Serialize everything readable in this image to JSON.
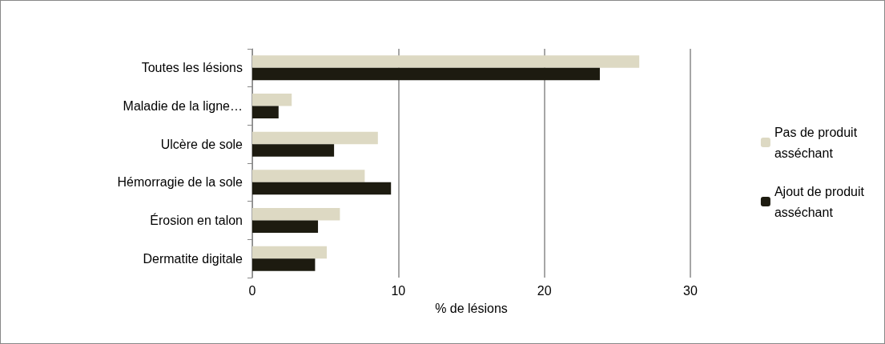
{
  "chart_data": {
    "type": "bar",
    "orientation": "horizontal",
    "xlabel": "% de lésions",
    "categories": [
      "Toutes les lésions",
      "Maladie de la ligne…",
      "Ulcère de sole",
      "Hémorragie de la sole",
      "Érosion en talon",
      "Dermatite digitale"
    ],
    "series": [
      {
        "name": "Pas de produit asséchant",
        "color": "#ddd9c3",
        "values": [
          26.5,
          2.7,
          8.6,
          7.7,
          6.0,
          5.1
        ]
      },
      {
        "name": "Ajout de produit asséchant",
        "color": "#1d1b10",
        "values": [
          23.8,
          1.8,
          5.6,
          9.5,
          4.5,
          4.3
        ]
      }
    ],
    "xlim": [
      0,
      30
    ],
    "xticks": [
      0,
      10,
      20,
      30
    ],
    "grid": "x",
    "legend": "right"
  }
}
